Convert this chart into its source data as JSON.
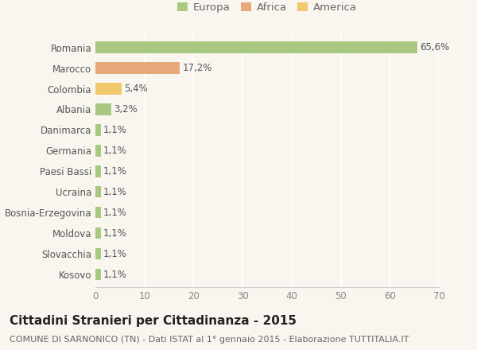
{
  "categories": [
    "Romania",
    "Marocco",
    "Colombia",
    "Albania",
    "Danimarca",
    "Germania",
    "Paesi Bassi",
    "Ucraina",
    "Bosnia-Erzegovina",
    "Moldova",
    "Slovacchia",
    "Kosovo"
  ],
  "values": [
    65.6,
    17.2,
    5.4,
    3.2,
    1.1,
    1.1,
    1.1,
    1.1,
    1.1,
    1.1,
    1.1,
    1.1
  ],
  "labels": [
    "65,6%",
    "17,2%",
    "5,4%",
    "3,2%",
    "1,1%",
    "1,1%",
    "1,1%",
    "1,1%",
    "1,1%",
    "1,1%",
    "1,1%",
    "1,1%"
  ],
  "colors": [
    "#a8c97f",
    "#e8a87c",
    "#f0c96e",
    "#a8c97f",
    "#a8c97f",
    "#a8c97f",
    "#a8c97f",
    "#a8c97f",
    "#a8c97f",
    "#a8c97f",
    "#a8c97f",
    "#a8c97f"
  ],
  "legend_labels": [
    "Europa",
    "Africa",
    "America"
  ],
  "legend_colors": [
    "#a8c97f",
    "#e8a87c",
    "#f0c96e"
  ],
  "title": "Cittadini Stranieri per Cittadinanza - 2015",
  "subtitle": "COMUNE DI SARNONICO (TN) - Dati ISTAT al 1° gennaio 2015 - Elaborazione TUTTITALIA.IT",
  "xlim": [
    0,
    70
  ],
  "xticks": [
    0,
    10,
    20,
    30,
    40,
    50,
    60,
    70
  ],
  "background_color": "#f9f6f0",
  "grid_color": "#ffffff",
  "bar_height": 0.55,
  "title_fontsize": 11,
  "subtitle_fontsize": 8,
  "label_fontsize": 8.5,
  "tick_fontsize": 8.5,
  "legend_fontsize": 9.5
}
